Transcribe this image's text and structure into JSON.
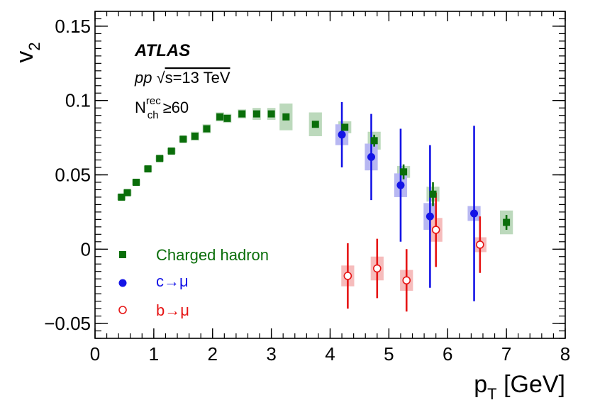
{
  "chart_data": {
    "type": "scatter",
    "experiment": "ATLAS",
    "system": "pp",
    "sqrt_s": "√s=13 TeV",
    "energy_label": "s=13 TeV",
    "sqrt_symbol": "√",
    "nch_cut": {
      "base": "N",
      "sup": "rec",
      "sub": "ch",
      "rest": "≥60"
    },
    "xlabel": {
      "base": "p",
      "sub": "T",
      "rest": " [GeV]"
    },
    "ylabel": {
      "base": "v",
      "sub": "2"
    },
    "xlim": [
      0,
      8
    ],
    "ylim": [
      -0.06,
      0.16
    ],
    "xticks": [
      0,
      1,
      2,
      3,
      4,
      5,
      6,
      7,
      8
    ],
    "xtick_labels": [
      "0",
      "1",
      "2",
      "3",
      "4",
      "5",
      "6",
      "7",
      "8"
    ],
    "yticks": [
      -0.05,
      0,
      0.05,
      0.1,
      0.15
    ],
    "ytick_labels": [
      "−0.05",
      "0",
      "0.05",
      "0.1",
      "0.15"
    ],
    "legend_position": "bottom-left",
    "series": [
      {
        "name": "Charged hadron",
        "marker": "square",
        "color": "#0a6e0a",
        "syst_color": "#bcd9bc",
        "points": [
          {
            "x": 0.45,
            "y": 0.035,
            "err": 0.001,
            "syst": 0.002
          },
          {
            "x": 0.55,
            "y": 0.038,
            "err": 0.001,
            "syst": 0.002
          },
          {
            "x": 0.7,
            "y": 0.045,
            "err": 0.001,
            "syst": 0.002
          },
          {
            "x": 0.9,
            "y": 0.054,
            "err": 0.001,
            "syst": 0.002
          },
          {
            "x": 1.1,
            "y": 0.061,
            "err": 0.001,
            "syst": 0.002
          },
          {
            "x": 1.3,
            "y": 0.066,
            "err": 0.001,
            "syst": 0.002
          },
          {
            "x": 1.5,
            "y": 0.074,
            "err": 0.001,
            "syst": 0.002
          },
          {
            "x": 1.7,
            "y": 0.076,
            "err": 0.001,
            "syst": 0.003
          },
          {
            "x": 1.9,
            "y": 0.081,
            "err": 0.001,
            "syst": 0.003
          },
          {
            "x": 2.125,
            "y": 0.089,
            "err": 0.001,
            "syst": 0.003
          },
          {
            "x": 2.25,
            "y": 0.088,
            "err": 0.001,
            "syst": 0.003
          },
          {
            "x": 2.5,
            "y": 0.091,
            "err": 0.001,
            "syst": 0.003
          },
          {
            "x": 2.75,
            "y": 0.091,
            "err": 0.001,
            "syst": 0.004
          },
          {
            "x": 3.0,
            "y": 0.091,
            "err": 0.001,
            "syst": 0.004
          },
          {
            "x": 3.25,
            "y": 0.089,
            "err": 0.001,
            "syst": 0.009
          },
          {
            "x": 3.75,
            "y": 0.084,
            "err": 0.001,
            "syst": 0.008
          },
          {
            "x": 4.25,
            "y": 0.082,
            "err": 0.002,
            "syst": 0.004
          },
          {
            "x": 4.75,
            "y": 0.073,
            "err": 0.004,
            "syst": 0.006
          },
          {
            "x": 5.25,
            "y": 0.052,
            "err": 0.005,
            "syst": 0.004
          },
          {
            "x": 5.75,
            "y": 0.037,
            "err": 0.008,
            "syst": 0.005
          },
          {
            "x": 7.0,
            "y": 0.018,
            "err": 0.005,
            "syst": 0.008
          }
        ]
      },
      {
        "name": "c→μ",
        "marker": "circle",
        "color": "#1414e6",
        "syst_color": "#b7b7f2",
        "points": [
          {
            "x": 4.2,
            "y": 0.077,
            "err": 0.022,
            "syst": 0.007
          },
          {
            "x": 4.7,
            "y": 0.062,
            "err": 0.029,
            "syst": 0.009
          },
          {
            "x": 5.2,
            "y": 0.043,
            "err": 0.038,
            "syst": 0.008
          },
          {
            "x": 5.7,
            "y": 0.022,
            "err": 0.048,
            "syst": 0.009
          },
          {
            "x": 6.45,
            "y": 0.024,
            "err": 0.059,
            "syst": 0.005
          }
        ]
      },
      {
        "name": "b→μ",
        "marker": "open-circle",
        "color": "#e61414",
        "syst_color": "#f6bcbc",
        "points": [
          {
            "x": 4.3,
            "y": -0.018,
            "err": 0.022,
            "syst": 0.007
          },
          {
            "x": 4.8,
            "y": -0.013,
            "err": 0.02,
            "syst": 0.008
          },
          {
            "x": 5.3,
            "y": -0.021,
            "err": 0.021,
            "syst": 0.007
          },
          {
            "x": 5.8,
            "y": 0.013,
            "err": 0.025,
            "syst": 0.008
          },
          {
            "x": 6.55,
            "y": 0.003,
            "err": 0.019,
            "syst": 0.005
          }
        ]
      }
    ]
  }
}
